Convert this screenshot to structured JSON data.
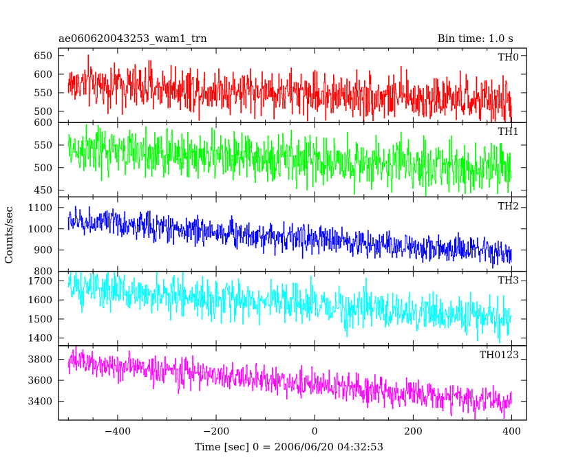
{
  "chart_data": {
    "type": "line",
    "title": "ae060620043253_wam1_trn",
    "subtitle": "Bin time: 1.0 s",
    "xlabel": "Time [sec] 0 = 2006/06/20 04:32:53",
    "ylabel": "Counts/sec",
    "xlim": [
      -520,
      430
    ],
    "x_ticks": [
      -400,
      -200,
      0,
      200,
      400
    ],
    "x_start": -500,
    "x_end": 400,
    "x_step": 1,
    "series": [
      {
        "name": "TH0",
        "color": "#ff0000",
        "ylim": [
          470,
          670
        ],
        "y_ticks": [
          500,
          550,
          600,
          650
        ],
        "start_mean": 575,
        "end_mean": 525,
        "noise_sd": 30
      },
      {
        "name": "TH1",
        "color": "#00ff00",
        "ylim": [
          435,
          600
        ],
        "y_ticks": [
          450,
          500,
          550,
          600
        ],
        "start_mean": 540,
        "end_mean": 497,
        "noise_sd": 27
      },
      {
        "name": "TH2",
        "color": "#0000ff",
        "ylim": [
          800,
          1150
        ],
        "y_ticks": [
          800,
          900,
          1000,
          1100
        ],
        "start_mean": 1040,
        "end_mean": 880,
        "noise_sd": 33
      },
      {
        "name": "TH3",
        "color": "#00ffff",
        "ylim": [
          1360,
          1750
        ],
        "y_ticks": [
          1400,
          1500,
          1600,
          1700
        ],
        "start_mean": 1660,
        "end_mean": 1500,
        "noise_sd": 50
      },
      {
        "name": "TH0123",
        "color": "#ff00ff",
        "ylim": [
          3220,
          3930
        ],
        "y_ticks": [
          3400,
          3600,
          3800
        ],
        "start_mean": 3780,
        "end_mean": 3380,
        "noise_sd": 68
      }
    ]
  }
}
